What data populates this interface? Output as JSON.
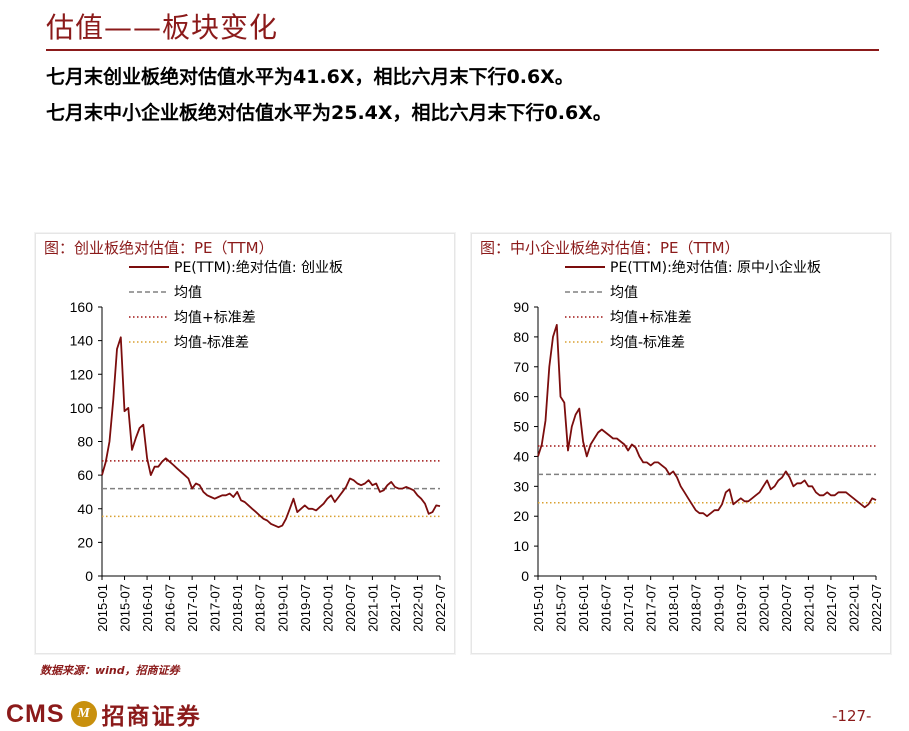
{
  "page": {
    "title": "估值——板块变化",
    "headline_1": "七月末创业板绝对估值水平为41.6X，相比六月末下行0.6X。",
    "headline_2": "七月末中小企业板绝对估值水平为25.4X，相比六月末下行0.6X。",
    "source": "数据来源：wind，招商证券",
    "logo_text": "CMS",
    "logo_badge": "M",
    "logo_cn": "招商证券",
    "page_number": "-127-"
  },
  "colors": {
    "brand": "#8b1a1a",
    "pe_line": "#7b0d0d",
    "mean_line": "#808080",
    "upper_line": "#a01515",
    "lower_line": "#d9a030"
  },
  "chart_data": [
    {
      "type": "line",
      "title": "图：创业板绝对估值：PE（TTM）",
      "xlabel": "",
      "ylabel": "",
      "ylim": [
        0,
        160
      ],
      "yticks": [
        0,
        20,
        40,
        60,
        80,
        100,
        120,
        140,
        160
      ],
      "xticks": [
        "2015-01",
        "2015-07",
        "2016-01",
        "2016-07",
        "2017-01",
        "2017-07",
        "2018-01",
        "2018-07",
        "2019-01",
        "2019-07",
        "2020-01",
        "2020-07",
        "2021-01",
        "2021-07",
        "2022-01",
        "2022-07"
      ],
      "legend": [
        "PE(TTM):绝对估值: 创业板",
        "均值",
        "均值+标准差",
        "均值-标准差"
      ],
      "legend_position": "top-left",
      "reference_lines": {
        "mean": 52,
        "mean_plus_std": 68.5,
        "mean_minus_std": 35.5
      },
      "series": [
        {
          "name": "PE(TTM):绝对估值: 创业板",
          "x": [
            "2015-01",
            "2015-02",
            "2015-03",
            "2015-04",
            "2015-05",
            "2015-06",
            "2015-07",
            "2015-08",
            "2015-09",
            "2015-10",
            "2015-11",
            "2015-12",
            "2016-01",
            "2016-02",
            "2016-03",
            "2016-04",
            "2016-05",
            "2016-06",
            "2016-07",
            "2016-08",
            "2016-09",
            "2016-10",
            "2016-11",
            "2016-12",
            "2017-01",
            "2017-02",
            "2017-03",
            "2017-04",
            "2017-05",
            "2017-06",
            "2017-07",
            "2017-08",
            "2017-09",
            "2017-10",
            "2017-11",
            "2017-12",
            "2018-01",
            "2018-02",
            "2018-03",
            "2018-04",
            "2018-05",
            "2018-06",
            "2018-07",
            "2018-08",
            "2018-09",
            "2018-10",
            "2018-11",
            "2018-12",
            "2019-01",
            "2019-02",
            "2019-03",
            "2019-04",
            "2019-05",
            "2019-06",
            "2019-07",
            "2019-08",
            "2019-09",
            "2019-10",
            "2019-11",
            "2019-12",
            "2020-01",
            "2020-02",
            "2020-03",
            "2020-04",
            "2020-05",
            "2020-06",
            "2020-07",
            "2020-08",
            "2020-09",
            "2020-10",
            "2020-11",
            "2020-12",
            "2021-01",
            "2021-02",
            "2021-03",
            "2021-04",
            "2021-05",
            "2021-06",
            "2021-07",
            "2021-08",
            "2021-09",
            "2021-10",
            "2021-11",
            "2021-12",
            "2022-01",
            "2022-02",
            "2022-03",
            "2022-04",
            "2022-05",
            "2022-06",
            "2022-07"
          ],
          "values": [
            60,
            68,
            80,
            105,
            135,
            142,
            98,
            100,
            75,
            82,
            88,
            90,
            70,
            60,
            65,
            65,
            68,
            70,
            68,
            66,
            64,
            62,
            60,
            58,
            52,
            55,
            54,
            50,
            48,
            47,
            46,
            47,
            48,
            48,
            49,
            47,
            50,
            45,
            44,
            42,
            40,
            38,
            36,
            34,
            33,
            31,
            30,
            29,
            30,
            34,
            40,
            46,
            38,
            40,
            42,
            40,
            40,
            39,
            41,
            43,
            46,
            48,
            44,
            47,
            50,
            53,
            58,
            57,
            55,
            54,
            55,
            57,
            54,
            55,
            50,
            51,
            54,
            56,
            53,
            52,
            52,
            53,
            52,
            51,
            48,
            46,
            43,
            37,
            38,
            42,
            41.6
          ]
        }
      ]
    },
    {
      "type": "line",
      "title": "图：中小企业板绝对估值：PE（TTM）",
      "xlabel": "",
      "ylabel": "",
      "ylim": [
        0,
        90
      ],
      "yticks": [
        0,
        10,
        20,
        30,
        40,
        50,
        60,
        70,
        80,
        90
      ],
      "xticks": [
        "2015-01",
        "2015-07",
        "2016-01",
        "2016-07",
        "2017-01",
        "2017-07",
        "2018-01",
        "2018-07",
        "2019-01",
        "2019-07",
        "2020-01",
        "2020-07",
        "2021-01",
        "2021-07",
        "2022-01",
        "2022-07"
      ],
      "legend": [
        "PE(TTM):绝对估值: 原中小企业板",
        "均值",
        "均值+标准差",
        "均值-标准差"
      ],
      "legend_position": "top-left",
      "reference_lines": {
        "mean": 34,
        "mean_plus_std": 43.5,
        "mean_minus_std": 24.5
      },
      "series": [
        {
          "name": "PE(TTM):绝对估值: 原中小企业板",
          "x": [
            "2015-01",
            "2015-02",
            "2015-03",
            "2015-04",
            "2015-05",
            "2015-06",
            "2015-07",
            "2015-08",
            "2015-09",
            "2015-10",
            "2015-11",
            "2015-12",
            "2016-01",
            "2016-02",
            "2016-03",
            "2016-04",
            "2016-05",
            "2016-06",
            "2016-07",
            "2016-08",
            "2016-09",
            "2016-10",
            "2016-11",
            "2016-12",
            "2017-01",
            "2017-02",
            "2017-03",
            "2017-04",
            "2017-05",
            "2017-06",
            "2017-07",
            "2017-08",
            "2017-09",
            "2017-10",
            "2017-11",
            "2017-12",
            "2018-01",
            "2018-02",
            "2018-03",
            "2018-04",
            "2018-05",
            "2018-06",
            "2018-07",
            "2018-08",
            "2018-09",
            "2018-10",
            "2018-11",
            "2018-12",
            "2019-01",
            "2019-02",
            "2019-03",
            "2019-04",
            "2019-05",
            "2019-06",
            "2019-07",
            "2019-08",
            "2019-09",
            "2019-10",
            "2019-11",
            "2019-12",
            "2020-01",
            "2020-02",
            "2020-03",
            "2020-04",
            "2020-05",
            "2020-06",
            "2020-07",
            "2020-08",
            "2020-09",
            "2020-10",
            "2020-11",
            "2020-12",
            "2021-01",
            "2021-02",
            "2021-03",
            "2021-04",
            "2021-05",
            "2021-06",
            "2021-07",
            "2021-08",
            "2021-09",
            "2021-10",
            "2021-11",
            "2021-12",
            "2022-01",
            "2022-02",
            "2022-03",
            "2022-04",
            "2022-05",
            "2022-06",
            "2022-07"
          ],
          "values": [
            40,
            44,
            52,
            70,
            80,
            84,
            60,
            58,
            42,
            50,
            54,
            56,
            45,
            40,
            44,
            46,
            48,
            49,
            48,
            47,
            46,
            46,
            45,
            44,
            42,
            44,
            43,
            40,
            38,
            38,
            37,
            38,
            38,
            37,
            36,
            34,
            35,
            33,
            30,
            28,
            26,
            24,
            22,
            21,
            21,
            20,
            21,
            22,
            22,
            24,
            28,
            29,
            24,
            25,
            26,
            25,
            25,
            26,
            27,
            28,
            30,
            32,
            29,
            30,
            32,
            33,
            35,
            33,
            30,
            31,
            31,
            32,
            30,
            30,
            28,
            27,
            27,
            28,
            27,
            27,
            28,
            28,
            28,
            27,
            26,
            25,
            24,
            23,
            24,
            26,
            25.4
          ]
        }
      ]
    }
  ]
}
